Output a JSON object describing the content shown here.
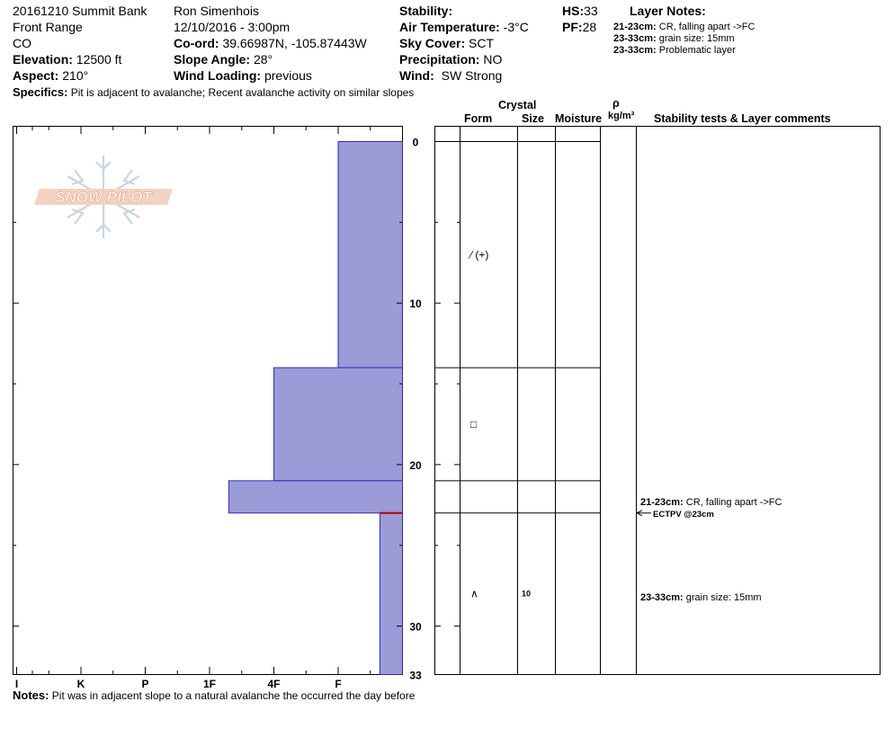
{
  "header": {
    "pit_name": "20161210 Summit Bank",
    "region": "Front Range",
    "state": "CO",
    "elevation_label": "Elevation:",
    "elevation": "12500 ft",
    "aspect_label": "Aspect:",
    "aspect": "210°",
    "observer": "Ron Simenhois",
    "datetime": "12/10/2016 - 3:00pm",
    "coord_label": "Co-ord:",
    "coord": "39.66987N, -105.87443W",
    "slope_label": "Slope Angle:",
    "slope": "28°",
    "wind_loading_label": "Wind Loading:",
    "wind_loading": "previous",
    "stability_label": "Stability:",
    "stability": "",
    "air_temp_label": "Air Temperature:",
    "air_temp": "-3°C",
    "sky_label": "Sky Cover:",
    "sky": "SCT",
    "precip_label": "Precipitation:",
    "precip": "NO",
    "wind_label": "Wind:",
    "wind": "SW Strong",
    "hs_label": "HS:",
    "hs": "33",
    "pf_label": "PF:",
    "pf": "28",
    "specifics_label": "Specifics:",
    "specifics": "Pit is adjacent to avalanche;  Recent avalanche activity on similar slopes"
  },
  "layer_notes": {
    "title": "Layer Notes:",
    "items": [
      {
        "range": "21-23cm:",
        "text": "CR, falling apart ->FC"
      },
      {
        "range": "23-33cm:",
        "text": "grain size: 15mm"
      },
      {
        "range": "23-33cm:",
        "text": "Problematic layer"
      }
    ]
  },
  "columns": {
    "crystal": "Crystal",
    "form": "Form",
    "size": "Size",
    "moisture": "Moisture",
    "rho": "ρ",
    "density_unit": "kg/m³",
    "stability": "Stability tests & Layer comments"
  },
  "notes_label": "Notes:",
  "notes": "Pit was in adjacent slope to a natural avalanche the occurred the day before",
  "logo_text": "SNOW PILOT",
  "layer_rows": [
    {
      "depth": 7,
      "form": "⁄ (+)",
      "size": ""
    },
    {
      "depth": 17.5,
      "form": "□",
      "size": ""
    },
    {
      "depth": 28,
      "form": "∧",
      "size": "10"
    }
  ],
  "comments": [
    {
      "depth": 22.3,
      "range": "21-23cm:",
      "text": "CR, falling apart ->FC"
    },
    {
      "depth": 28.2,
      "range": "23-33cm:",
      "text": "grain size: 15mm"
    }
  ],
  "test_result": {
    "depth": 23,
    "text": "ECTPV @23cm"
  },
  "colors": {
    "profile_fill": "#9b9bd8",
    "profile_stroke": "#2b2bbf",
    "weak_layer": "#b00000",
    "logo": "#e8b89c"
  },
  "chart_data": {
    "type": "bar",
    "orientation": "horizontal",
    "x_categories": [
      "I",
      "K",
      "P",
      "1F",
      "4F",
      "F"
    ],
    "x_note": "hardness index: F=1, 4F=2, 1F=3, P=4, K=5, I=6",
    "y_ticks": [
      0,
      10,
      20,
      30,
      33
    ],
    "ylim": [
      0,
      33
    ],
    "y_reversed": true,
    "layers": [
      {
        "top": 0,
        "bottom": 14,
        "hardness": 1
      },
      {
        "top": 14,
        "bottom": 21,
        "hardness": 2
      },
      {
        "top": 21,
        "bottom": 23,
        "hardness": 2.7
      },
      {
        "top": 23,
        "bottom": 33,
        "hardness": 0.35
      }
    ],
    "layer_boundaries": [
      14,
      21,
      23
    ],
    "weak_layer_depth": 23
  }
}
